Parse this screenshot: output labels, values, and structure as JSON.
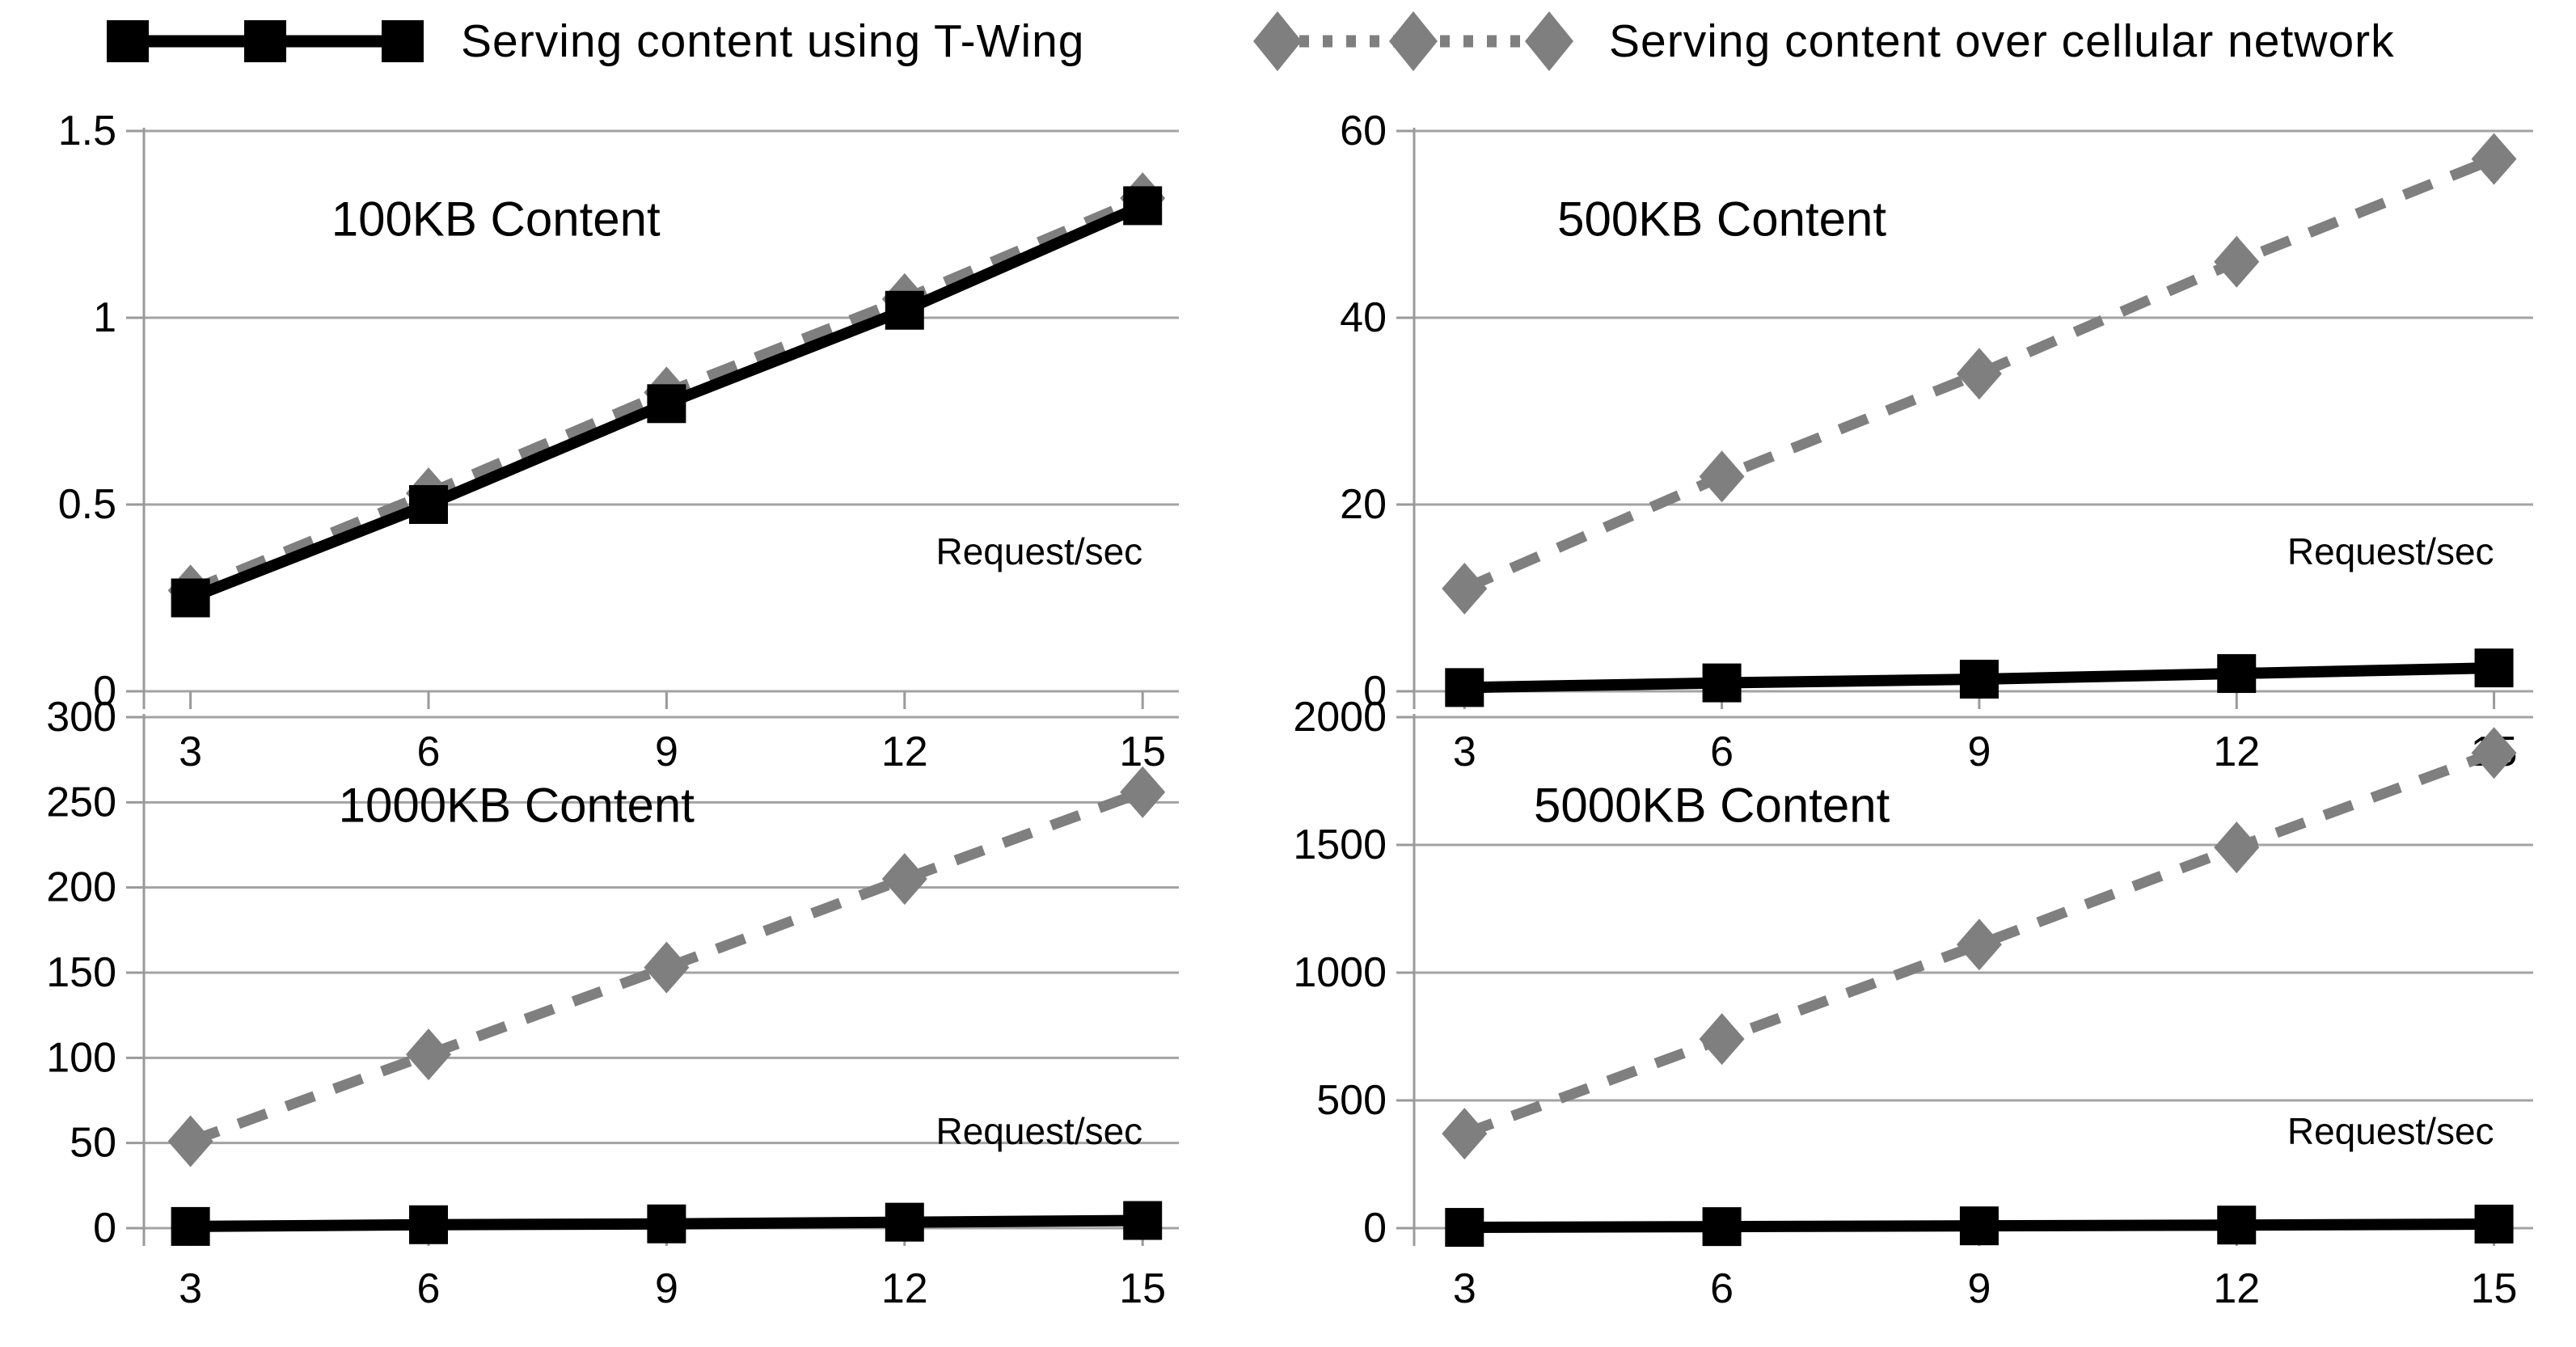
{
  "figure": {
    "request_unit_label": "Request/sec",
    "x_tick_labels": [
      "3",
      "6",
      "9",
      "12",
      "15"
    ]
  },
  "legend": {
    "items": [
      {
        "id": "twing",
        "label": "Serving content using T-Wing",
        "marker": "square",
        "line": "solid"
      },
      {
        "id": "cellular",
        "label": "Serving content over cellular network",
        "marker": "diamond",
        "line": "dashed"
      }
    ]
  },
  "colors": {
    "twing": "#000000",
    "cellular": "#7f7f7f",
    "grid": "#a3a3a3",
    "axis": "#9a9a9a",
    "text": "#000000"
  },
  "chart_data": [
    {
      "type": "line",
      "title": "100KB Content",
      "unit_label": "Request/sec",
      "x": [
        3,
        6,
        9,
        12,
        15
      ],
      "xlabel": "",
      "ylabel": "",
      "ylim": [
        0,
        1.5
      ],
      "yticks": [
        0,
        0.5,
        1,
        1.5
      ],
      "grid": true,
      "series": [
        {
          "name": "Serving content over cellular network",
          "color_key": "cellular",
          "marker": "diamond",
          "line": "dashed",
          "values": [
            0.27,
            0.53,
            0.8,
            1.05,
            1.32
          ]
        },
        {
          "name": "Serving content using T-Wing",
          "color_key": "twing",
          "marker": "square",
          "line": "solid",
          "values": [
            0.25,
            0.5,
            0.77,
            1.02,
            1.3
          ]
        }
      ]
    },
    {
      "type": "line",
      "title": "500KB Content",
      "unit_label": "Request/sec",
      "x": [
        3,
        6,
        9,
        12,
        15
      ],
      "xlabel": "",
      "ylabel": "",
      "ylim": [
        0,
        60
      ],
      "yticks": [
        0,
        20,
        40,
        60
      ],
      "grid": true,
      "series": [
        {
          "name": "Serving content over cellular network",
          "color_key": "cellular",
          "marker": "diamond",
          "line": "dashed",
          "values": [
            11,
            23,
            34,
            46,
            57
          ]
        },
        {
          "name": "Serving content using T-Wing",
          "color_key": "twing",
          "marker": "square",
          "line": "solid",
          "values": [
            0.4,
            0.9,
            1.3,
            1.9,
            2.5
          ]
        }
      ]
    },
    {
      "type": "line",
      "title": "1000KB Content",
      "unit_label": "Request/sec",
      "x": [
        3,
        6,
        9,
        12,
        15
      ],
      "xlabel": "",
      "ylabel": "",
      "ylim": [
        0,
        300
      ],
      "yticks": [
        0,
        50,
        100,
        150,
        200,
        250,
        300
      ],
      "grid": true,
      "series": [
        {
          "name": "Serving content over cellular network",
          "color_key": "cellular",
          "marker": "diamond",
          "line": "dashed",
          "values": [
            51,
            102,
            153,
            205,
            256
          ]
        },
        {
          "name": "Serving content using T-Wing",
          "color_key": "twing",
          "marker": "square",
          "line": "solid",
          "values": [
            1,
            2,
            2.5,
            3.5,
            4.5
          ]
        }
      ]
    },
    {
      "type": "line",
      "title": "5000KB Content",
      "unit_label": "Request/sec",
      "x": [
        3,
        6,
        9,
        12,
        15
      ],
      "xlabel": "",
      "ylabel": "",
      "ylim": [
        0,
        2000
      ],
      "yticks": [
        0,
        500,
        1000,
        1500,
        2000
      ],
      "grid": true,
      "series": [
        {
          "name": "Serving content over cellular network",
          "color_key": "cellular",
          "marker": "diamond",
          "line": "dashed",
          "values": [
            370,
            740,
            1110,
            1490,
            1860
          ]
        },
        {
          "name": "Serving content using T-Wing",
          "color_key": "twing",
          "marker": "square",
          "line": "solid",
          "values": [
            3,
            6,
            9,
            12,
            16
          ]
        }
      ]
    }
  ]
}
